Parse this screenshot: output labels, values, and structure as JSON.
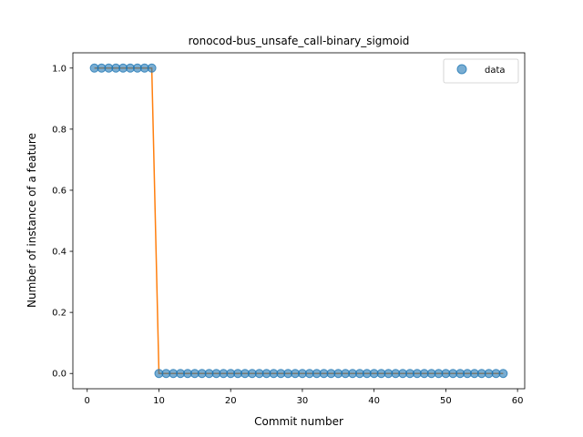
{
  "chart_data": {
    "type": "line",
    "title": "ronocod-bus_unsafe_call-binary_sigmoid",
    "xlabel": "Commit number",
    "ylabel": "Number of instance of a feature",
    "xlim": [
      -2,
      61
    ],
    "ylim": [
      -0.05,
      1.05
    ],
    "xticks": [
      0,
      10,
      20,
      30,
      40,
      50,
      60
    ],
    "yticks": [
      0.0,
      0.2,
      0.4,
      0.6,
      0.8,
      1.0
    ],
    "xtick_labels": [
      "0",
      "10",
      "20",
      "30",
      "40",
      "50",
      "60"
    ],
    "ytick_labels": [
      "0.0",
      "0.2",
      "0.4",
      "0.6",
      "0.8",
      "1.0"
    ],
    "legend": {
      "position": "top-right",
      "entries": [
        "data"
      ]
    },
    "grid": false,
    "series": [
      {
        "name": "data",
        "kind": "scatter",
        "color": "#1f77b4",
        "x": [
          1,
          2,
          3,
          4,
          5,
          6,
          7,
          8,
          9,
          10,
          11,
          12,
          13,
          14,
          15,
          16,
          17,
          18,
          19,
          20,
          21,
          22,
          23,
          24,
          25,
          26,
          27,
          28,
          29,
          30,
          31,
          32,
          33,
          34,
          35,
          36,
          37,
          38,
          39,
          40,
          41,
          42,
          43,
          44,
          45,
          46,
          47,
          48,
          49,
          50,
          51,
          52,
          53,
          54,
          55,
          56,
          57,
          58
        ],
        "y": [
          1,
          1,
          1,
          1,
          1,
          1,
          1,
          1,
          1,
          0,
          0,
          0,
          0,
          0,
          0,
          0,
          0,
          0,
          0,
          0,
          0,
          0,
          0,
          0,
          0,
          0,
          0,
          0,
          0,
          0,
          0,
          0,
          0,
          0,
          0,
          0,
          0,
          0,
          0,
          0,
          0,
          0,
          0,
          0,
          0,
          0,
          0,
          0,
          0,
          0,
          0,
          0,
          0,
          0,
          0,
          0,
          0,
          0
        ]
      },
      {
        "kind": "line",
        "color": "#ff7f0e",
        "x": [
          1,
          2,
          3,
          4,
          5,
          6,
          7,
          8,
          9,
          10,
          11,
          12,
          13,
          14,
          15,
          16,
          17,
          18,
          19,
          20,
          21,
          22,
          23,
          24,
          25,
          26,
          27,
          28,
          29,
          30,
          31,
          32,
          33,
          34,
          35,
          36,
          37,
          38,
          39,
          40,
          41,
          42,
          43,
          44,
          45,
          46,
          47,
          48,
          49,
          50,
          51,
          52,
          53,
          54,
          55,
          56,
          57,
          58
        ],
        "y": [
          1,
          1,
          1,
          1,
          1,
          1,
          1,
          1,
          1,
          0,
          0,
          0,
          0,
          0,
          0,
          0,
          0,
          0,
          0,
          0,
          0,
          0,
          0,
          0,
          0,
          0,
          0,
          0,
          0,
          0,
          0,
          0,
          0,
          0,
          0,
          0,
          0,
          0,
          0,
          0,
          0,
          0,
          0,
          0,
          0,
          0,
          0,
          0,
          0,
          0,
          0,
          0,
          0,
          0,
          0,
          0,
          0,
          0
        ]
      }
    ]
  }
}
